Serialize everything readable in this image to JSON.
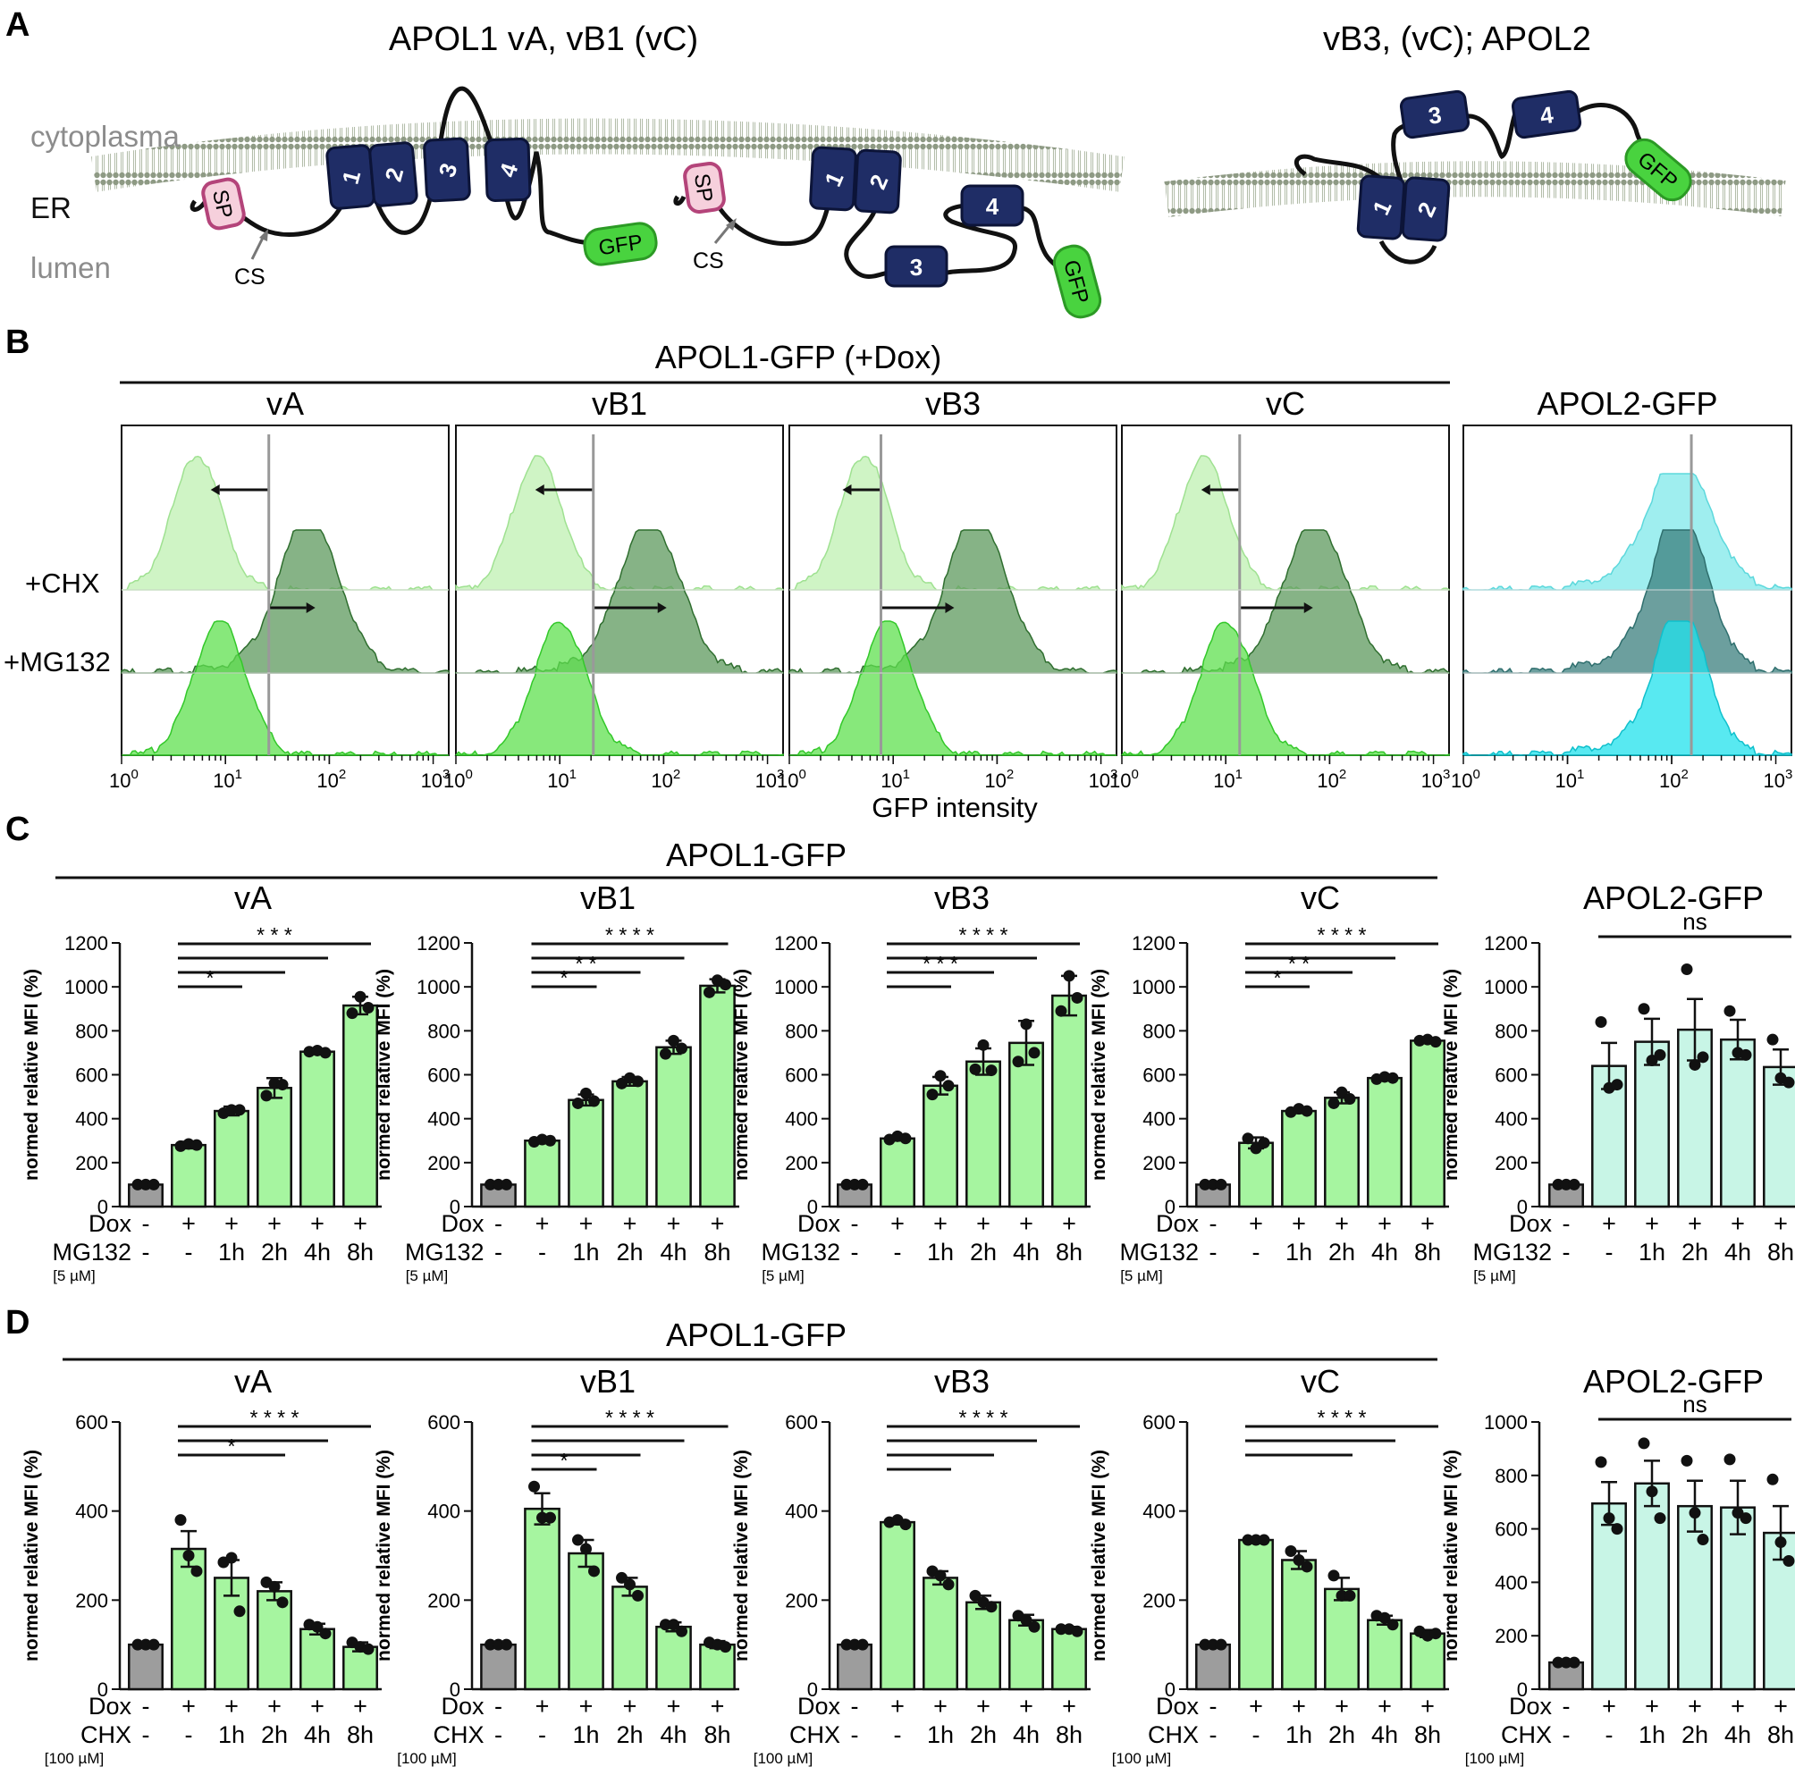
{
  "colors": {
    "membrane": "#9aa58f",
    "tm_box": "#1f2d66",
    "sp_fill": "#f6d0dc",
    "sp_stroke": "#b4447a",
    "gfp": "#49d33f",
    "apol1_bar": "#a6f5a0",
    "apol2_bar": "#c8f5e6",
    "ctrl_bar": "#9d9d9d",
    "hist_light": "#bff0b2",
    "hist_mid": "#5fe04f",
    "hist_dark": "#5e9a5e",
    "apol2_hist": "#7fe8ea",
    "apol2_hist_dark": "#3b7f7e"
  },
  "panelA": {
    "letter": "A",
    "title_left": "APOL1 vA, vB1 (vC)",
    "title_right": "vB3, (vC); APOL2",
    "label_cytoplasma": "cytoplasma",
    "label_er": "ER",
    "label_lumen": "lumen",
    "sp": "SP",
    "cs": "CS",
    "gfp": "GFP",
    "tm_numbers": [
      "1",
      "2",
      "3",
      "4"
    ]
  },
  "panelB": {
    "letter": "B",
    "group_title": "APOL1-GFP (+Dox)",
    "histograms": [
      "vA",
      "vB1",
      "vB3",
      "vC",
      "APOL2-GFP"
    ],
    "row_labels": [
      "+CHX",
      "+MG132"
    ],
    "xaxis_label": "GFP intensity",
    "tick_base": "10",
    "tick_exps": [
      "0",
      "1",
      "2",
      "3"
    ]
  },
  "panelC": {
    "letter": "C",
    "group_title": "APOL1-GFP",
    "ylabel": "normed relative MFI (%)",
    "row1_label": "Dox",
    "row2_label": "MG132",
    "conc_label": "[5 µM]",
    "row1": [
      "-",
      "+",
      "+",
      "+",
      "+",
      "+"
    ],
    "row2": [
      "-",
      "-",
      "1h",
      "2h",
      "4h",
      "8h"
    ]
  },
  "panelD": {
    "letter": "D",
    "group_title": "APOL1-GFP",
    "ylabel": "normed relative MFI (%)",
    "row1_label": "Dox",
    "row2_label": "CHX",
    "conc_label": "[100 µM]",
    "row1": [
      "-",
      "+",
      "+",
      "+",
      "+",
      "+"
    ],
    "row2": [
      "-",
      "-",
      "1h",
      "2h",
      "4h",
      "8h"
    ]
  },
  "chart_data": [
    {
      "id": "C-vA",
      "type": "bar",
      "title": "vA",
      "ylabel": "normed relative MFI (%)",
      "ylim": [
        0,
        1200
      ],
      "yticks": [
        0,
        200,
        400,
        600,
        800,
        1000,
        1200
      ],
      "categories": [
        "-/-",
        "+/-",
        "+/1h",
        "+/2h",
        "+/4h",
        "+/8h"
      ],
      "values": [
        100,
        280,
        435,
        540,
        705,
        915
      ],
      "errors": [
        0,
        15,
        20,
        45,
        8,
        40
      ],
      "points": [
        [
          100,
          100,
          100
        ],
        [
          275,
          285,
          280
        ],
        [
          425,
          440,
          440
        ],
        [
          505,
          560,
          555
        ],
        [
          705,
          710,
          700
        ],
        [
          880,
          955,
          905
        ]
      ],
      "significance": [
        {
          "to": 2,
          "label": "*"
        },
        {
          "to": 3,
          "label": ""
        },
        {
          "to": 4,
          "label": ""
        },
        {
          "to": 5,
          "label": "* * *"
        }
      ]
    },
    {
      "id": "C-vB1",
      "type": "bar",
      "title": "vB1",
      "ylabel": "normed relative MFI (%)",
      "ylim": [
        0,
        1200
      ],
      "yticks": [
        0,
        200,
        400,
        600,
        800,
        1000,
        1200
      ],
      "categories": [
        "-/-",
        "+/-",
        "+/1h",
        "+/2h",
        "+/4h",
        "+/8h"
      ],
      "values": [
        100,
        300,
        485,
        570,
        725,
        1005
      ],
      "errors": [
        0,
        12,
        25,
        20,
        30,
        30
      ],
      "points": [
        [
          100,
          100,
          100
        ],
        [
          295,
          305,
          300
        ],
        [
          470,
          515,
          480
        ],
        [
          560,
          585,
          570
        ],
        [
          695,
          755,
          720
        ],
        [
          975,
          1030,
          1010
        ]
      ],
      "significance": [
        {
          "to": 2,
          "label": "*"
        },
        {
          "to": 3,
          "label": "* *"
        },
        {
          "to": 4,
          "label": ""
        },
        {
          "to": 5,
          "label": "* * * *"
        }
      ]
    },
    {
      "id": "C-vB3",
      "type": "bar",
      "title": "vB3",
      "ylabel": "normed relative MFI (%)",
      "ylim": [
        0,
        1200
      ],
      "yticks": [
        0,
        200,
        400,
        600,
        800,
        1000,
        1200
      ],
      "categories": [
        "-/-",
        "+/-",
        "+/1h",
        "+/2h",
        "+/4h",
        "+/8h"
      ],
      "values": [
        100,
        310,
        550,
        660,
        745,
        960
      ],
      "errors": [
        0,
        10,
        40,
        60,
        100,
        90
      ],
      "points": [
        [
          100,
          100,
          100
        ],
        [
          305,
          320,
          310
        ],
        [
          510,
          595,
          550
        ],
        [
          625,
          735,
          620
        ],
        [
          660,
          830,
          700
        ],
        [
          890,
          1050,
          950
        ]
      ],
      "significance": [
        {
          "to": 3,
          "label": "* * *"
        },
        {
          "to": 5,
          "label": "* * * *"
        },
        {
          "to": 2,
          "label": ""
        },
        {
          "to": 4,
          "label": ""
        }
      ]
    },
    {
      "id": "C-vC",
      "type": "bar",
      "title": "vC",
      "ylabel": "normed relative MFI (%)",
      "ylim": [
        0,
        1200
      ],
      "yticks": [
        0,
        200,
        400,
        600,
        800,
        1000,
        1200
      ],
      "categories": [
        "-/-",
        "+/-",
        "+/1h",
        "+/2h",
        "+/4h",
        "+/8h"
      ],
      "values": [
        100,
        290,
        435,
        495,
        585,
        755
      ],
      "errors": [
        0,
        25,
        10,
        25,
        8,
        5
      ],
      "points": [
        [
          100,
          100,
          100
        ],
        [
          310,
          265,
          290
        ],
        [
          430,
          445,
          435
        ],
        [
          470,
          520,
          490
        ],
        [
          580,
          590,
          585
        ],
        [
          755,
          760,
          750
        ]
      ],
      "significance": [
        {
          "to": 2,
          "label": "*"
        },
        {
          "to": 3,
          "label": "* *"
        },
        {
          "to": 4,
          "label": ""
        },
        {
          "to": 5,
          "label": "* * * *"
        }
      ]
    },
    {
      "id": "C-APOL2",
      "type": "bar",
      "title": "APOL2-GFP",
      "ylabel": "normed relative MFI (%)",
      "ylim": [
        0,
        1200
      ],
      "yticks": [
        0,
        200,
        400,
        600,
        800,
        1000,
        1200
      ],
      "categories": [
        "-/-",
        "+/-",
        "+/1h",
        "+/2h",
        "+/4h",
        "+/8h"
      ],
      "values": [
        100,
        640,
        750,
        805,
        760,
        635
      ],
      "errors": [
        0,
        105,
        105,
        140,
        90,
        80
      ],
      "points": [
        [
          100,
          100,
          100
        ],
        [
          840,
          540,
          555
        ],
        [
          900,
          665,
          690
        ],
        [
          1080,
          645,
          680
        ],
        [
          890,
          700,
          690
        ],
        [
          760,
          585,
          565
        ]
      ],
      "significance": [
        {
          "from": 1,
          "to": 5,
          "label": "ns"
        }
      ]
    },
    {
      "id": "D-vA",
      "type": "bar",
      "title": "vA",
      "ylabel": "normed relative MFI (%)",
      "ylim": [
        0,
        600
      ],
      "yticks": [
        0,
        200,
        400,
        600
      ],
      "categories": [
        "-/-",
        "+/-",
        "+/1h",
        "+/2h",
        "+/4h",
        "+/8h"
      ],
      "values": [
        100,
        315,
        250,
        220,
        135,
        95
      ],
      "errors": [
        0,
        40,
        40,
        20,
        12,
        10
      ],
      "points": [
        [
          100,
          100,
          100
        ],
        [
          380,
          300,
          265
        ],
        [
          285,
          295,
          175
        ],
        [
          240,
          230,
          195
        ],
        [
          145,
          140,
          125
        ],
        [
          105,
          95,
          90
        ]
      ],
      "significance": [
        {
          "to": 3,
          "label": "*"
        },
        {
          "to": 4,
          "label": ""
        },
        {
          "to": 5,
          "label": "* * * *"
        }
      ]
    },
    {
      "id": "D-vB1",
      "type": "bar",
      "title": "vB1",
      "ylabel": "normed relative MFI (%)",
      "ylim": [
        0,
        600
      ],
      "yticks": [
        0,
        200,
        400,
        600
      ],
      "categories": [
        "-/-",
        "+/-",
        "+/1h",
        "+/2h",
        "+/4h",
        "+/8h"
      ],
      "values": [
        100,
        405,
        305,
        230,
        140,
        100
      ],
      "errors": [
        0,
        35,
        30,
        20,
        10,
        8
      ],
      "points": [
        [
          100,
          100,
          100
        ],
        [
          455,
          385,
          385
        ],
        [
          335,
          315,
          265
        ],
        [
          250,
          235,
          210
        ],
        [
          145,
          145,
          130
        ],
        [
          105,
          100,
          95
        ]
      ],
      "significance": [
        {
          "to": 2,
          "label": "*"
        },
        {
          "to": 3,
          "label": ""
        },
        {
          "to": 4,
          "label": ""
        },
        {
          "to": 5,
          "label": "* * * *"
        }
      ]
    },
    {
      "id": "D-vB3",
      "type": "bar",
      "title": "vB3",
      "ylabel": "normed relative MFI (%)",
      "ylim": [
        0,
        600
      ],
      "yticks": [
        0,
        200,
        400,
        600
      ],
      "categories": [
        "-/-",
        "+/-",
        "+/1h",
        "+/2h",
        "+/4h",
        "+/8h"
      ],
      "values": [
        100,
        375,
        250,
        195,
        155,
        135
      ],
      "errors": [
        0,
        5,
        15,
        15,
        12,
        5
      ],
      "points": [
        [
          100,
          100,
          100
        ],
        [
          375,
          380,
          370
        ],
        [
          265,
          255,
          235
        ],
        [
          210,
          195,
          185
        ],
        [
          165,
          155,
          140
        ],
        [
          135,
          135,
          130
        ]
      ],
      "significance": [
        {
          "to": 2,
          "label": ""
        },
        {
          "to": 3,
          "label": ""
        },
        {
          "to": 4,
          "label": ""
        },
        {
          "to": 5,
          "label": "* * * *"
        }
      ]
    },
    {
      "id": "D-vC",
      "type": "bar",
      "title": "vC",
      "ylabel": "normed relative MFI (%)",
      "ylim": [
        0,
        600
      ],
      "yticks": [
        0,
        200,
        400,
        600
      ],
      "categories": [
        "-/-",
        "+/-",
        "+/1h",
        "+/2h",
        "+/4h",
        "+/8h"
      ],
      "values": [
        100,
        335,
        290,
        225,
        155,
        125
      ],
      "errors": [
        0,
        3,
        20,
        25,
        10,
        8
      ],
      "points": [
        [
          100,
          100,
          100
        ],
        [
          335,
          335,
          335
        ],
        [
          310,
          290,
          275
        ],
        [
          255,
          210,
          210
        ],
        [
          165,
          160,
          145
        ],
        [
          130,
          120,
          125
        ]
      ],
      "significance": [
        {
          "to": 3,
          "label": ""
        },
        {
          "to": 4,
          "label": ""
        },
        {
          "to": 5,
          "label": "* * * *"
        }
      ]
    },
    {
      "id": "D-APOL2",
      "type": "bar",
      "title": "APOL2-GFP",
      "ylabel": "normed relative MFI (%)",
      "ylim": [
        0,
        1000
      ],
      "yticks": [
        0,
        200,
        400,
        600,
        800,
        1000
      ],
      "categories": [
        "-/-",
        "+/-",
        "+/1h",
        "+/2h",
        "+/4h",
        "+/8h"
      ],
      "values": [
        100,
        695,
        770,
        685,
        680,
        585
      ],
      "errors": [
        0,
        80,
        85,
        95,
        100,
        100
      ],
      "points": [
        [
          100,
          100,
          100
        ],
        [
          850,
          640,
          600
        ],
        [
          920,
          740,
          640
        ],
        [
          855,
          660,
          560
        ],
        [
          860,
          660,
          640
        ],
        [
          785,
          550,
          480
        ]
      ],
      "significance": [
        {
          "from": 1,
          "to": 5,
          "label": "ns"
        }
      ]
    }
  ]
}
